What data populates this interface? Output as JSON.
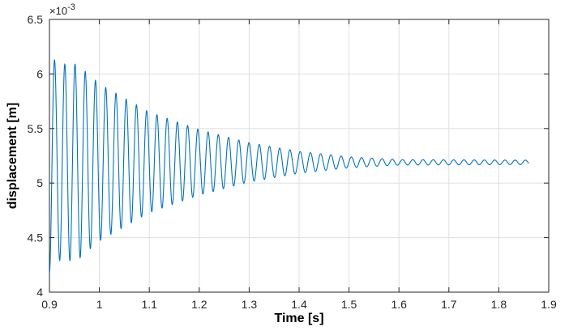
{
  "chart_data": {
    "type": "line",
    "title": "",
    "xlabel": "Time [s]",
    "ylabel": "displacement [m]",
    "xlim": [
      0.9,
      1.9
    ],
    "ylim": [
      4.0,
      6.5
    ],
    "y_exponent_label": "×10",
    "y_exponent_power": "-3",
    "x_ticks": [
      "0.9",
      "1",
      "1.1",
      "1.2",
      "1.3",
      "1.4",
      "1.5",
      "1.6",
      "1.7",
      "1.8",
      "1.9"
    ],
    "y_ticks": [
      "4",
      "4.5",
      "5",
      "5.5",
      "6",
      "6.5"
    ],
    "grid": true,
    "series": [
      {
        "color": "#0072BD",
        "description": "damped oscillation about 5.19e-3 m",
        "t_start": 0.9,
        "t_end": 1.86,
        "equilibrium": 5.19,
        "period": 0.0205,
        "envelope": [
          [
            0.9,
            1.02
          ],
          [
            0.915,
            0.9
          ],
          [
            0.935,
            0.9
          ],
          [
            0.955,
            0.9
          ],
          [
            1.0,
            0.72
          ],
          [
            1.1,
            0.46
          ],
          [
            1.2,
            0.3
          ],
          [
            1.3,
            0.18
          ],
          [
            1.4,
            0.1
          ],
          [
            1.5,
            0.05
          ],
          [
            1.6,
            0.025
          ],
          [
            1.86,
            0.02
          ]
        ]
      }
    ]
  },
  "colors": {
    "line": "#0072BD",
    "grid": "#DFDFDF",
    "axis": "#262626"
  }
}
